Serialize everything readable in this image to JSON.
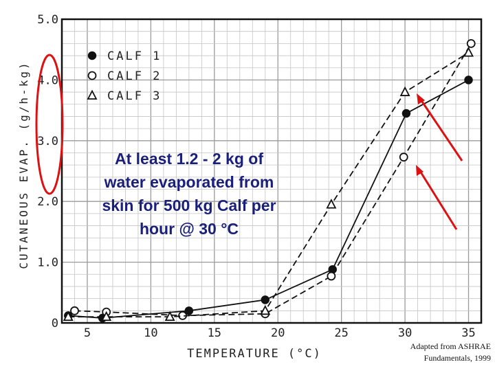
{
  "chart_data": {
    "type": "line",
    "xlabel": "TEMPERATURE (°C)",
    "ylabel": "CUTANEOUS EVAP. (g/h-kg)",
    "xlim": [
      3,
      36
    ],
    "ylim": [
      0,
      5
    ],
    "x_ticks": [
      "5",
      "10",
      "15",
      "20",
      "25",
      "30",
      "35"
    ],
    "x_tick_values": [
      5,
      10,
      15,
      20,
      25,
      30,
      35
    ],
    "y_ticks": [
      "0",
      "1.0",
      "2.0",
      "3.0",
      "4.0",
      "5.0"
    ],
    "y_tick_values": [
      0,
      1,
      2,
      3,
      4,
      5
    ],
    "grid": true,
    "legend_position": "top-left",
    "series": [
      {
        "name": "CALF 1",
        "marker": "filled-circle",
        "line": "solid",
        "points": [
          [
            3.5,
            0.12
          ],
          [
            6.2,
            0.08
          ],
          [
            13,
            0.2
          ],
          [
            19,
            0.38
          ],
          [
            24.3,
            0.88
          ],
          [
            30.1,
            3.45
          ],
          [
            35,
            4.0
          ]
        ]
      },
      {
        "name": "CALF 2",
        "marker": "open-circle",
        "line": "dashed",
        "points": [
          [
            4,
            0.2
          ],
          [
            6.5,
            0.18
          ],
          [
            12.5,
            0.12
          ],
          [
            19,
            0.15
          ],
          [
            24.2,
            0.77
          ],
          [
            29.9,
            2.73
          ],
          [
            35.2,
            4.6
          ]
        ]
      },
      {
        "name": "CALF 3",
        "marker": "open-triangle",
        "line": "dashed",
        "points": [
          [
            3.5,
            0.1
          ],
          [
            6.5,
            0.1
          ],
          [
            11.5,
            0.1
          ],
          [
            19,
            0.2
          ],
          [
            24.2,
            1.95
          ],
          [
            30,
            3.8
          ],
          [
            35,
            4.45
          ]
        ]
      }
    ]
  },
  "annotation": {
    "lines": [
      "At least 1.2 - 2 kg of",
      "water evaporated from",
      "skin for 500 kg Calf per",
      "hour @ 30 °C"
    ]
  },
  "credit": {
    "line1": "Adapted from ASHRAE",
    "line2": "Fundamentals, 1999"
  },
  "colors": {
    "highlight": "#dd1111",
    "annotation_text": "#1a1f7a",
    "plot_ink": "#111111"
  }
}
